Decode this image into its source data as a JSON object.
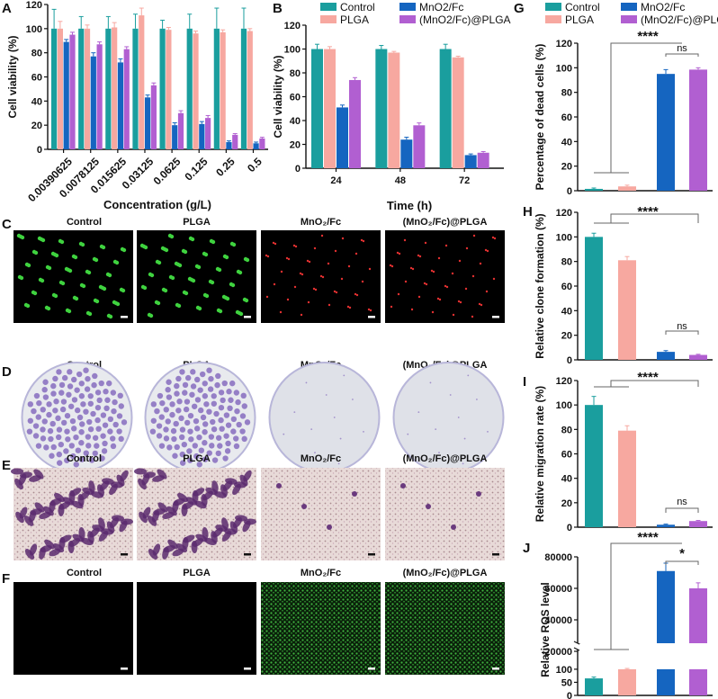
{
  "colors": {
    "control": "#1a9e9e",
    "plga": "#f7a8a0",
    "mno2": "#1565c0",
    "mno2plga": "#b15fd1",
    "axis": "#111111"
  },
  "panel_letters": [
    "A",
    "B",
    "C",
    "D",
    "E",
    "F",
    "G",
    "H",
    "I",
    "J"
  ],
  "image_columns": [
    "Control",
    "PLGA",
    "MnO₂/Fc",
    "(MnO₂/Fc)@PLGA"
  ],
  "image_panels": [
    "C",
    "D",
    "E",
    "F"
  ],
  "chart_data": [
    {
      "panel": "A",
      "type": "bar",
      "categories": [
        "0.00390625",
        "0.0078125",
        "0.015625",
        "0.03125",
        "0.0625",
        "0.125",
        "0.25",
        "0.5"
      ],
      "xlabel": "Concentration (g/L)",
      "ylabel": "Cell viability (%)",
      "ylim": [
        0,
        120
      ],
      "yticks": [
        0,
        20,
        40,
        60,
        80,
        100,
        120
      ],
      "series": [
        {
          "name": "Control",
          "color": "#1a9e9e",
          "values": [
            100,
            100,
            100,
            100,
            100,
            100,
            100,
            100
          ],
          "errors": [
            16,
            10,
            10,
            12,
            7,
            12,
            17,
            17
          ]
        },
        {
          "name": "PLGA",
          "color": "#f7a8a0",
          "values": [
            100,
            100,
            101,
            111,
            99,
            96,
            97,
            98
          ],
          "errors": [
            6,
            3,
            4,
            6,
            2,
            2,
            2,
            2
          ]
        },
        {
          "name": "MnO2/Fc",
          "color": "#1565c0",
          "values": [
            89,
            77,
            72,
            43,
            20,
            21,
            6,
            5
          ],
          "errors": [
            2,
            3,
            3,
            2,
            2,
            2,
            1,
            1
          ]
        },
        {
          "name": "(MnO2/Fc)@PLGA",
          "color": "#b15fd1",
          "values": [
            95,
            87,
            83,
            53,
            30,
            26,
            12,
            9
          ],
          "errors": [
            2,
            2,
            2,
            2,
            2,
            2,
            1,
            1
          ]
        }
      ]
    },
    {
      "panel": "B",
      "type": "bar",
      "categories": [
        "24",
        "48",
        "72"
      ],
      "xlabel": "Time (h)",
      "ylabel": "Cell viability (%)",
      "ylim": [
        0,
        120
      ],
      "yticks": [
        0,
        20,
        40,
        60,
        80,
        100,
        120
      ],
      "legend": [
        "Control",
        "PLGA",
        "MnO2/Fc",
        "(MnO2/Fc)@PLGA"
      ],
      "series": [
        {
          "name": "Control",
          "color": "#1a9e9e",
          "values": [
            100,
            100,
            100
          ],
          "errors": [
            4,
            3,
            4
          ]
        },
        {
          "name": "PLGA",
          "color": "#f7a8a0",
          "values": [
            100,
            97,
            93
          ],
          "errors": [
            2,
            1,
            1
          ]
        },
        {
          "name": "MnO2/Fc",
          "color": "#1565c0",
          "values": [
            51,
            24,
            11
          ],
          "errors": [
            2,
            2,
            1
          ]
        },
        {
          "name": "(MnO2/Fc)@PLGA",
          "color": "#b15fd1",
          "values": [
            74,
            36,
            13
          ],
          "errors": [
            2,
            2,
            1
          ]
        }
      ]
    },
    {
      "panel": "G",
      "type": "bar",
      "categories": [
        "Control",
        "PLGA",
        "MnO2/Fc",
        "(MnO2/Fc)@PLGA"
      ],
      "ylabel": "Percentage of dead cells (%)",
      "ylim": [
        0,
        120
      ],
      "yticks": [
        0,
        20,
        40,
        60,
        80,
        100,
        120
      ],
      "legend": [
        "Control",
        "PLGA",
        "MnO2/Fc",
        "(MnO2/Fc)@PLGA"
      ],
      "values": [
        1.5,
        3.5,
        95,
        98.5
      ],
      "errors": [
        0.7,
        1.0,
        3.5,
        1.5
      ],
      "annotations": [
        "****",
        "ns"
      ]
    },
    {
      "panel": "H",
      "type": "bar",
      "categories": [
        "Control",
        "PLGA",
        "MnO2/Fc",
        "(MnO2/Fc)@PLGA"
      ],
      "ylabel": "Relative clone formation (%)",
      "ylim": [
        0,
        120
      ],
      "yticks": [
        0,
        20,
        40,
        60,
        80,
        100,
        120
      ],
      "values": [
        100,
        81,
        6.5,
        4
      ],
      "errors": [
        3,
        3,
        1,
        0.5
      ],
      "annotations": [
        "****",
        "ns"
      ]
    },
    {
      "panel": "I",
      "type": "bar",
      "categories": [
        "Control",
        "PLGA",
        "MnO2/Fc",
        "(MnO2/Fc)@PLGA"
      ],
      "ylabel": "Relative migration rate (%)",
      "ylim": [
        0,
        120
      ],
      "yticks": [
        0,
        20,
        40,
        60,
        80,
        100,
        120
      ],
      "values": [
        100,
        79,
        2,
        5
      ],
      "errors": [
        7,
        4,
        0.5,
        0.5
      ],
      "annotations": [
        "****",
        "ns"
      ]
    },
    {
      "panel": "J",
      "type": "bar",
      "categories": [
        "Control",
        "PLGA",
        "MnO2/Fc",
        "(MnO2/Fc)@PLGA"
      ],
      "ylabel": "Relative ROS level",
      "axis_break": true,
      "lower_yticks": [
        0,
        50,
        100
      ],
      "upper_yticks": [
        20000,
        40000,
        60000,
        80000
      ],
      "values": [
        65,
        100,
        71000,
        60000
      ],
      "errors": [
        5,
        3,
        5000,
        3500
      ],
      "annotations": [
        "****",
        "*"
      ]
    }
  ]
}
